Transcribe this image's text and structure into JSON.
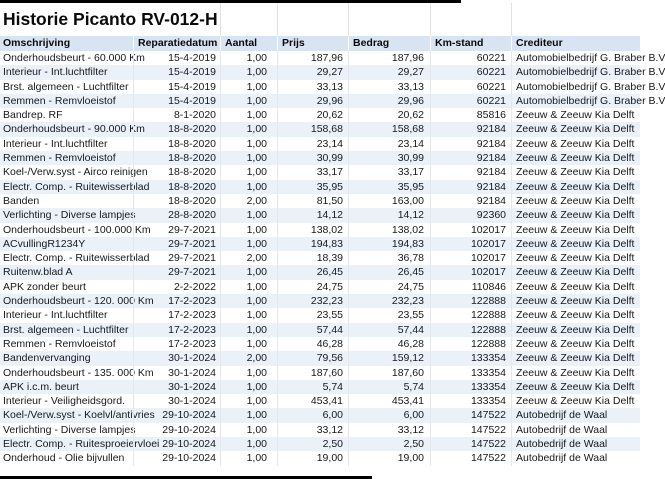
{
  "title": "Historie Picanto RV-012-H",
  "colors": {
    "header_bg": "#d8e4f1",
    "row_alt": "#ebf1f9",
    "text_color": "#16191d",
    "bar_color": "#000000"
  },
  "table": {
    "columns": [
      {
        "key": "omschrijving",
        "label": "Omschrijving"
      },
      {
        "key": "reparatiedatum",
        "label": "Reparatiedatum"
      },
      {
        "key": "aantal",
        "label": "Aantal"
      },
      {
        "key": "prijs",
        "label": "Prijs"
      },
      {
        "key": "bedrag",
        "label": "Bedrag"
      },
      {
        "key": "kmstand",
        "label": "Km-stand"
      },
      {
        "key": "crediteur",
        "label": "Crediteur"
      }
    ],
    "rows": [
      [
        "Onderhoudsbeurt - 60.000 Km",
        "15-4-2019",
        "1,00",
        "187,96",
        "187,96",
        "60221",
        "Automobielbedrijf G. Braber B.V"
      ],
      [
        "Interieur - Int.luchtfilter",
        "15-4-2019",
        "1,00",
        "29,27",
        "29,27",
        "60221",
        "Automobielbedrijf G. Braber B.V"
      ],
      [
        "Brst. algemeen - Luchtfilter",
        "15-4-2019",
        "1,00",
        "33,13",
        "33,13",
        "60221",
        "Automobielbedrijf G. Braber B.V"
      ],
      [
        "Remmen - Remvloeistof",
        "15-4-2019",
        "1,00",
        "29,96",
        "29,96",
        "60221",
        "Automobielbedrijf G. Braber B.V"
      ],
      [
        "Bandrep. RF",
        "8-1-2020",
        "1,00",
        "20,62",
        "20,62",
        "85816",
        "Zeeuw & Zeeuw Kia Delft"
      ],
      [
        "Onderhoudsbeurt - 90.000 Km",
        "18-8-2020",
        "1,00",
        "158,68",
        "158,68",
        "92184",
        "Zeeuw & Zeeuw Kia Delft"
      ],
      [
        "Interieur - Int.luchtfilter",
        "18-8-2020",
        "1,00",
        "23,14",
        "23,14",
        "92184",
        "Zeeuw & Zeeuw Kia Delft"
      ],
      [
        "Remmen - Remvloeistof",
        "18-8-2020",
        "1,00",
        "30,99",
        "30,99",
        "92184",
        "Zeeuw & Zeeuw Kia Delft"
      ],
      [
        "Koel-/Verw.syst - Airco reinigen",
        "18-8-2020",
        "1,00",
        "33,17",
        "33,17",
        "92184",
        "Zeeuw & Zeeuw Kia Delft"
      ],
      [
        "Electr. Comp. - Ruitewisserblad",
        "18-8-2020",
        "1,00",
        "35,95",
        "35,95",
        "92184",
        "Zeeuw & Zeeuw Kia Delft"
      ],
      [
        "Banden",
        "18-8-2020",
        "2,00",
        "81,50",
        "163,00",
        "92184",
        "Zeeuw & Zeeuw Kia Delft"
      ],
      [
        "Verlichting - Diverse lampjes",
        "28-8-2020",
        "1,00",
        "14,12",
        "14,12",
        "92360",
        "Zeeuw & Zeeuw Kia Delft"
      ],
      [
        "Onderhoudsbeurt - 100.000 Km",
        "29-7-2021",
        "1,00",
        "138,02",
        "138,02",
        "102017",
        "Zeeuw & Zeeuw Kia Delft"
      ],
      [
        "ACvullingR1234Y",
        "29-7-2021",
        "1,00",
        "194,83",
        "194,83",
        "102017",
        "Zeeuw & Zeeuw Kia Delft"
      ],
      [
        "Electr. Comp. - Ruitewisserblad",
        "29-7-2021",
        "2,00",
        "18,39",
        "36,78",
        "102017",
        "Zeeuw & Zeeuw Kia Delft"
      ],
      [
        "Ruitenw.blad A",
        "29-7-2021",
        "1,00",
        "26,45",
        "26,45",
        "102017",
        "Zeeuw & Zeeuw Kia Delft"
      ],
      [
        "APK zonder beurt",
        "2-2-2022",
        "1,00",
        "24,75",
        "24,75",
        "110846",
        "Zeeuw & Zeeuw Kia Delft"
      ],
      [
        "Onderhoudsbeurt - 120. 000 Km",
        "17-2-2023",
        "1,00",
        "232,23",
        "232,23",
        "122888",
        "Zeeuw & Zeeuw Kia Delft"
      ],
      [
        "Interieur - Int.luchtfilter",
        "17-2-2023",
        "1,00",
        "23,55",
        "23,55",
        "122888",
        "Zeeuw & Zeeuw Kia Delft"
      ],
      [
        "Brst. algemeen - Luchtfilter",
        "17-2-2023",
        "1,00",
        "57,44",
        "57,44",
        "122888",
        "Zeeuw & Zeeuw Kia Delft"
      ],
      [
        "Remmen - Remvloeistof",
        "17-2-2023",
        "1,00",
        "46,28",
        "46,28",
        "122888",
        "Zeeuw & Zeeuw Kia Delft"
      ],
      [
        "Bandenvervanging",
        "30-1-2024",
        "2,00",
        "79,56",
        "159,12",
        "133354",
        "Zeeuw & Zeeuw Kia Delft"
      ],
      [
        "Onderhoudsbeurt - 135. 000 Km",
        "30-1-2024",
        "1,00",
        "187,60",
        "187,60",
        "133354",
        "Zeeuw & Zeeuw Kia Delft"
      ],
      [
        "APK i.c.m. beurt",
        "30-1-2024",
        "1,00",
        "5,74",
        "5,74",
        "133354",
        "Zeeuw & Zeeuw Kia Delft"
      ],
      [
        "Interieur - Veiligheidsgord.",
        "30-1-2024",
        "1,00",
        "453,41",
        "453,41",
        "133354",
        "Zeeuw & Zeeuw Kia Delft"
      ],
      [
        "Koel-/Verw.syst - Koelvl/antivries",
        "29-10-2024",
        "1,00",
        "6,00",
        "6,00",
        "147522",
        "Autobedrijf de Waal"
      ],
      [
        "Verlichting - Diverse lampjes",
        "29-10-2024",
        "1,00",
        "33,12",
        "33,12",
        "147522",
        "Autobedrijf de Waal"
      ],
      [
        "Electr. Comp. - Ruitesproeiervloei",
        "29-10-2024",
        "1,00",
        "2,50",
        "2,50",
        "147522",
        "Autobedrijf de Waal"
      ],
      [
        "Onderhoud - Olie bijvullen",
        "29-10-2024",
        "1,00",
        "19,00",
        "19,00",
        "147522",
        "Autobedrijf de Waal"
      ]
    ]
  }
}
